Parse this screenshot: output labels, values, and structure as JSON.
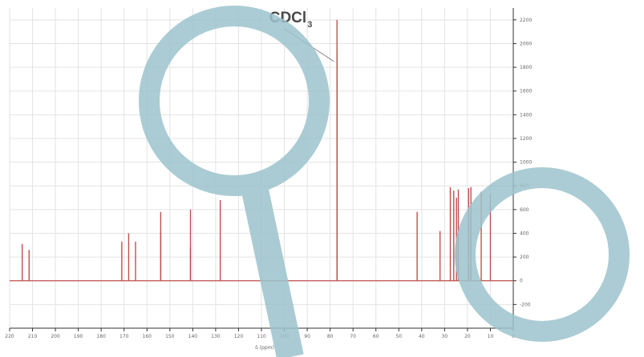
{
  "chart_data": {
    "type": "line",
    "title": "",
    "xlabel": "δ (ppm)",
    "ylabel": "",
    "x_reversed": true,
    "xlim": [
      0,
      220
    ],
    "ylim": [
      -400,
      2300
    ],
    "x_ticks": [
      0,
      10,
      20,
      30,
      40,
      50,
      60,
      70,
      80,
      90,
      100,
      110,
      120,
      130,
      140,
      150,
      160,
      170,
      180,
      190,
      200,
      210,
      220
    ],
    "y_ticks": [
      -200,
      0,
      200,
      400,
      600,
      800,
      1000,
      1200,
      1400,
      1600,
      1800,
      2000,
      2200
    ],
    "grid": true,
    "colors": {
      "spectrum": "#c0504d",
      "grid": "#e3e3e3",
      "axis": "#333333",
      "watermark": "#9cc3cc"
    },
    "peaks": [
      {
        "x": 214.5,
        "y": 310
      },
      {
        "x": 211.5,
        "y": 260
      },
      {
        "x": 171.0,
        "y": 330
      },
      {
        "x": 168.0,
        "y": 400
      },
      {
        "x": 165.0,
        "y": 330
      },
      {
        "x": 154.0,
        "y": 580
      },
      {
        "x": 154.0,
        "y": 420
      },
      {
        "x": 141.0,
        "y": 600
      },
      {
        "x": 141.0,
        "y": 280
      },
      {
        "x": 128.0,
        "y": 680
      },
      {
        "x": 77.0,
        "y": 2200
      },
      {
        "x": 77.0,
        "y": 1950
      },
      {
        "x": 77.0,
        "y": 1700
      },
      {
        "x": 42.0,
        "y": 580
      },
      {
        "x": 32.0,
        "y": 420
      },
      {
        "x": 27.5,
        "y": 790
      },
      {
        "x": 26.0,
        "y": 760
      },
      {
        "x": 24.8,
        "y": 700
      },
      {
        "x": 24.0,
        "y": 770
      },
      {
        "x": 19.5,
        "y": 780
      },
      {
        "x": 18.5,
        "y": 790
      },
      {
        "x": 14.0,
        "y": 750
      },
      {
        "x": 10.0,
        "y": 730
      }
    ],
    "annotations": [
      {
        "text": "CDCl",
        "subscript": "3",
        "x": 77.0
      }
    ]
  }
}
